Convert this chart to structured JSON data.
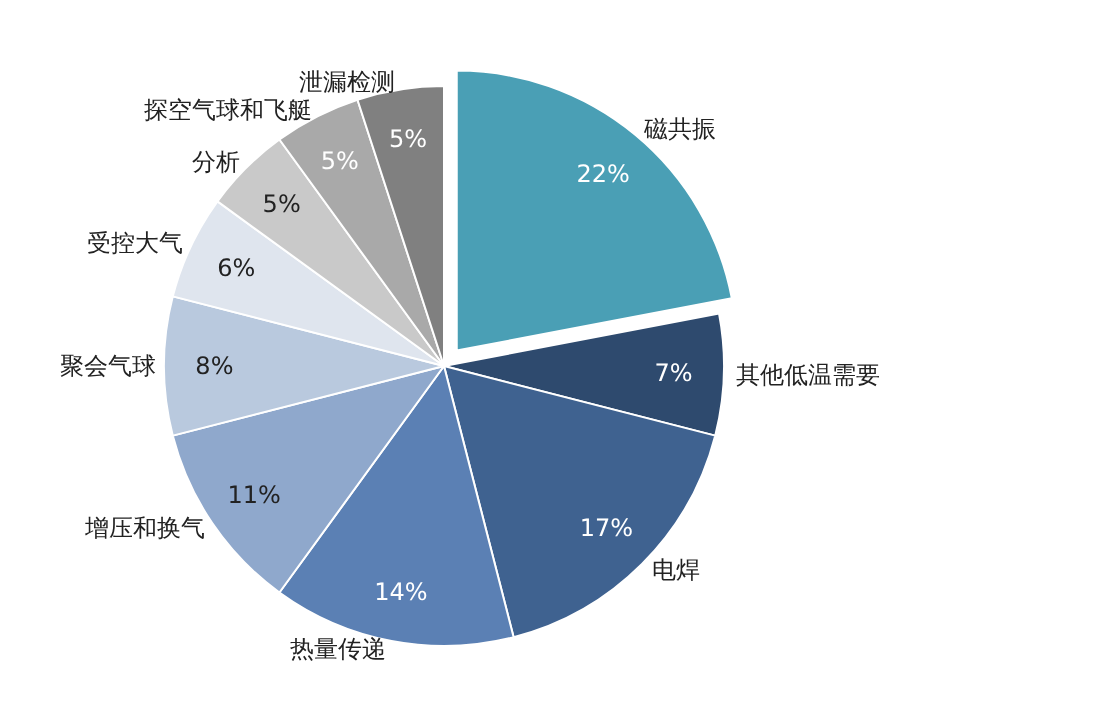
{
  "chart_data": {
    "type": "pie",
    "categories": [
      "磁共振",
      "其他低温需要",
      "电焊",
      "热量传递",
      "增压和换气",
      "聚会气球",
      "受控大气",
      "分析",
      "探空气球和飞艇",
      "泄漏检测"
    ],
    "values": [
      22,
      7,
      17,
      14,
      11,
      8,
      6,
      5,
      5,
      5
    ],
    "value_labels": [
      "22%",
      "7%",
      "17%",
      "14%",
      "11%",
      "8%",
      "6%",
      "5%",
      "5%",
      "5%"
    ],
    "colors": [
      "#4a9fb5",
      "#2e4a6e",
      "#3f6290",
      "#5b80b4",
      "#8fa8cc",
      "#b9c9de",
      "#dfe5ee",
      "#c9c9c9",
      "#a9a9a9",
      "#808080"
    ],
    "legend": false
  }
}
